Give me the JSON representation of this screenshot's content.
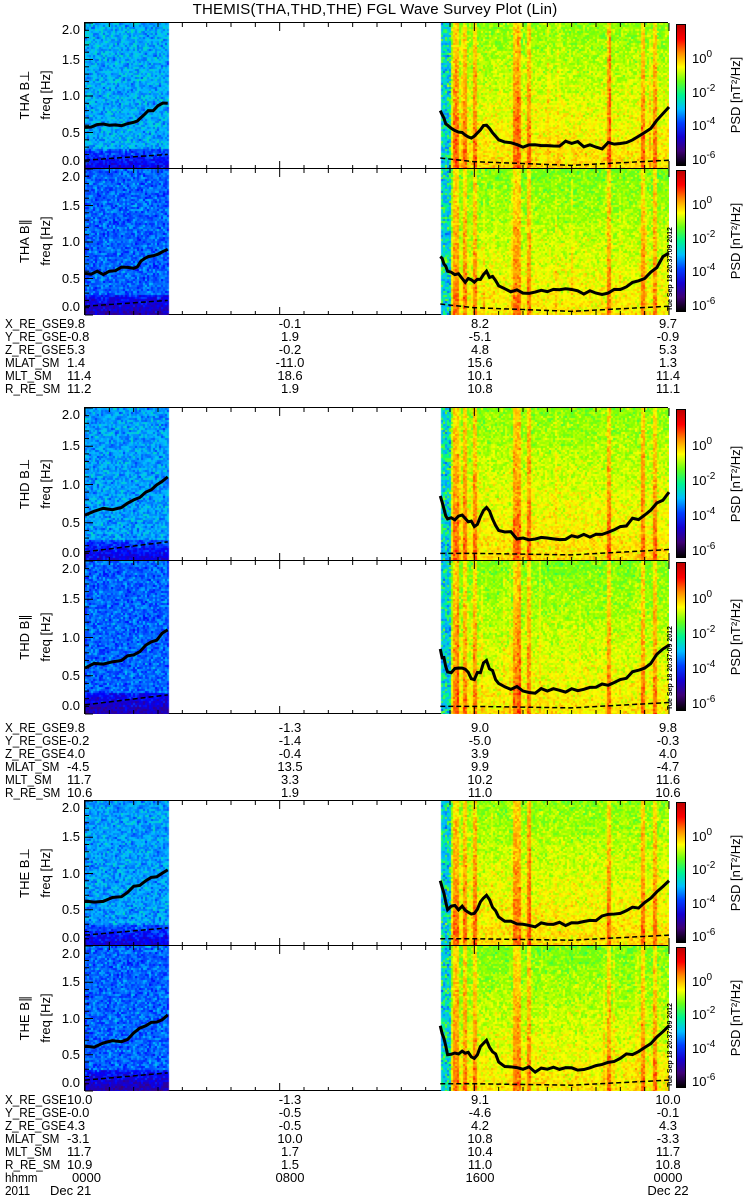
{
  "title": "THEMIS(THA,THD,THE) FGL Wave Survey Plot (Lin)",
  "timestamp": "Tue Sep 18 20:37:09 2012",
  "chart_data": {
    "type": "heatmap",
    "title": "THEMIS(THA,THD,THE) FGL Wave Survey Plot (Lin)",
    "xlabel": "hhmm",
    "x_range_hours": [
      0,
      24
    ],
    "x_tick_labels": [
      "0000",
      "0800",
      "1600",
      "0000"
    ],
    "x_tick_hours": [
      0,
      8,
      16,
      24
    ],
    "year_label": "2011",
    "date_labels": [
      "Dec 21",
      "Dec 22"
    ],
    "ylabel": "freq [Hz]",
    "ylim": [
      0,
      2
    ],
    "y_tick_labels": [
      "0.0",
      "0.5",
      "1.0",
      "1.5",
      "2.0"
    ],
    "colorbar": {
      "label": "PSD [nT²/Hz]",
      "log10_range": [
        -6.5,
        2
      ],
      "ticks": [
        {
          "base": "10",
          "exp": "0",
          "value": 0
        },
        {
          "base": "10",
          "exp": "-2",
          "value": -2
        },
        {
          "base": "10",
          "exp": "-4",
          "value": -4
        },
        {
          "base": "10",
          "exp": "-6",
          "value": -6
        }
      ]
    },
    "data_intervals_hours": [
      [
        0,
        3.45
      ],
      [
        14.6,
        24
      ]
    ],
    "enhanced_power_hours": [
      15.2,
      15.55,
      16.0,
      17.6,
      17.75,
      18.2,
      21.5,
      22.9,
      23.4
    ],
    "panels": [
      {
        "label": "THA B⊥",
        "probe": "THA",
        "base_log_psd_left": -3.2,
        "base_log_psd_right": -1.2,
        "solid_line": [
          [
            [
              0,
              0.57
            ],
            [
              1,
              0.6
            ],
            [
              2,
              0.64
            ],
            [
              2.6,
              0.8
            ],
            [
              3.4,
              0.9
            ]
          ],
          [
            [
              14.6,
              0.8
            ],
            [
              14.9,
              0.6
            ],
            [
              15.5,
              0.5
            ],
            [
              16,
              0.45
            ],
            [
              16.5,
              0.6
            ],
            [
              17,
              0.4
            ],
            [
              18,
              0.3
            ],
            [
              19,
              0.32
            ],
            [
              20,
              0.35
            ],
            [
              21,
              0.3
            ],
            [
              22,
              0.35
            ],
            [
              23,
              0.5
            ],
            [
              24,
              0.85
            ]
          ]
        ],
        "dashed_line": [
          [
            [
              0,
              0.12
            ],
            [
              3.4,
              0.2
            ]
          ],
          [
            [
              14.6,
              0.15
            ],
            [
              16,
              0.1
            ],
            [
              20,
              0.05
            ],
            [
              24,
              0.12
            ]
          ]
        ]
      },
      {
        "label": "THA B∥",
        "probe": "THA",
        "base_log_psd_left": -3.7,
        "base_log_psd_right": -1.3,
        "solid_line": [
          [
            [
              0,
              0.57
            ],
            [
              1,
              0.6
            ],
            [
              2,
              0.64
            ],
            [
              2.6,
              0.8
            ],
            [
              3.4,
              0.9
            ]
          ],
          [
            [
              14.6,
              0.8
            ],
            [
              14.9,
              0.6
            ],
            [
              15.5,
              0.5
            ],
            [
              16,
              0.45
            ],
            [
              16.5,
              0.6
            ],
            [
              17,
              0.4
            ],
            [
              18,
              0.3
            ],
            [
              19,
              0.32
            ],
            [
              20,
              0.35
            ],
            [
              21,
              0.3
            ],
            [
              22,
              0.35
            ],
            [
              23,
              0.5
            ],
            [
              24,
              0.85
            ]
          ]
        ],
        "dashed_line": [
          [
            [
              0,
              0.12
            ],
            [
              3.4,
              0.2
            ]
          ],
          [
            [
              14.6,
              0.15
            ],
            [
              16,
              0.1
            ],
            [
              20,
              0.05
            ],
            [
              24,
              0.12
            ]
          ]
        ]
      },
      {
        "label": "THD B⊥",
        "probe": "THD",
        "base_log_psd_left": -3.3,
        "base_log_psd_right": -1.2,
        "solid_line": [
          [
            [
              0,
              0.6
            ],
            [
              1.5,
              0.7
            ],
            [
              2.5,
              0.9
            ],
            [
              3.4,
              1.1
            ]
          ],
          [
            [
              14.6,
              0.85
            ],
            [
              14.9,
              0.55
            ],
            [
              15.5,
              0.6
            ],
            [
              16,
              0.45
            ],
            [
              16.5,
              0.7
            ],
            [
              17,
              0.4
            ],
            [
              18,
              0.3
            ],
            [
              19,
              0.3
            ],
            [
              20,
              0.33
            ],
            [
              21,
              0.35
            ],
            [
              22,
              0.45
            ],
            [
              23,
              0.6
            ],
            [
              24,
              0.9
            ]
          ]
        ],
        "dashed_line": [
          [
            [
              0,
              0.12
            ],
            [
              3.4,
              0.25
            ]
          ],
          [
            [
              14.6,
              0.1
            ],
            [
              16,
              0.1
            ],
            [
              20,
              0.08
            ],
            [
              24,
              0.15
            ]
          ]
        ]
      },
      {
        "label": "THD B∥",
        "probe": "THD",
        "base_log_psd_left": -3.7,
        "base_log_psd_right": -1.3,
        "solid_line": [
          [
            [
              0,
              0.6
            ],
            [
              1.5,
              0.7
            ],
            [
              2.5,
              0.9
            ],
            [
              3.4,
              1.1
            ]
          ],
          [
            [
              14.6,
              0.85
            ],
            [
              14.9,
              0.55
            ],
            [
              15.5,
              0.6
            ],
            [
              16,
              0.45
            ],
            [
              16.5,
              0.7
            ],
            [
              17,
              0.4
            ],
            [
              18,
              0.3
            ],
            [
              19,
              0.3
            ],
            [
              20,
              0.33
            ],
            [
              21,
              0.35
            ],
            [
              22,
              0.45
            ],
            [
              23,
              0.6
            ],
            [
              24,
              0.9
            ]
          ]
        ],
        "dashed_line": [
          [
            [
              0,
              0.12
            ],
            [
              3.4,
              0.25
            ]
          ],
          [
            [
              14.6,
              0.1
            ],
            [
              16,
              0.1
            ],
            [
              20,
              0.08
            ],
            [
              24,
              0.15
            ]
          ]
        ]
      },
      {
        "label": "THE B⊥",
        "probe": "THE",
        "base_log_psd_left": -3.3,
        "base_log_psd_right": -1.2,
        "solid_line": [
          [
            [
              0,
              0.62
            ],
            [
              1.5,
              0.68
            ],
            [
              2.5,
              0.9
            ],
            [
              3.4,
              1.05
            ]
          ],
          [
            [
              14.6,
              0.9
            ],
            [
              14.9,
              0.5
            ],
            [
              15.5,
              0.55
            ],
            [
              16,
              0.45
            ],
            [
              16.5,
              0.7
            ],
            [
              17,
              0.4
            ],
            [
              18,
              0.3
            ],
            [
              19,
              0.3
            ],
            [
              20,
              0.32
            ],
            [
              21,
              0.35
            ],
            [
              22,
              0.45
            ],
            [
              23,
              0.6
            ],
            [
              24,
              0.9
            ]
          ]
        ],
        "dashed_line": [
          [
            [
              0,
              0.15
            ],
            [
              3.4,
              0.25
            ]
          ],
          [
            [
              14.6,
              0.1
            ],
            [
              16,
              0.1
            ],
            [
              20,
              0.08
            ],
            [
              24,
              0.15
            ]
          ]
        ]
      },
      {
        "label": "THE B∥",
        "probe": "THE",
        "base_log_psd_left": -3.7,
        "base_log_psd_right": -1.3,
        "solid_line": [
          [
            [
              0,
              0.62
            ],
            [
              1.5,
              0.68
            ],
            [
              2.5,
              0.9
            ],
            [
              3.4,
              1.05
            ]
          ],
          [
            [
              14.6,
              0.9
            ],
            [
              14.9,
              0.5
            ],
            [
              15.5,
              0.55
            ],
            [
              16,
              0.45
            ],
            [
              16.5,
              0.7
            ],
            [
              17,
              0.4
            ],
            [
              18,
              0.3
            ],
            [
              19,
              0.3
            ],
            [
              20,
              0.32
            ],
            [
              21,
              0.35
            ],
            [
              22,
              0.45
            ],
            [
              23,
              0.6
            ],
            [
              24,
              0.9
            ]
          ]
        ],
        "dashed_line": [
          [
            [
              0,
              0.15
            ],
            [
              3.4,
              0.25
            ]
          ],
          [
            [
              14.6,
              0.1
            ],
            [
              16,
              0.1
            ],
            [
              20,
              0.08
            ],
            [
              24,
              0.15
            ]
          ]
        ]
      }
    ],
    "orbit_tables": [
      {
        "probe": "THA",
        "rows": [
          {
            "label": "X_RE_GSE",
            "values": [
              "9.8",
              "-0.1",
              "8.2",
              "9.7"
            ]
          },
          {
            "label": "Y_RE_GSE",
            "values": [
              "-0.8",
              "1.9",
              "-5.1",
              "-0.9"
            ]
          },
          {
            "label": "Z_RE_GSE",
            "values": [
              "5.3",
              "-0.2",
              "4.8",
              "5.3"
            ]
          },
          {
            "label": "MLAT_SM",
            "values": [
              "1.4",
              "-11.0",
              "15.6",
              "1.3"
            ]
          },
          {
            "label": "MLT_SM",
            "values": [
              "11.4",
              "18.6",
              "10.1",
              "11.4"
            ]
          },
          {
            "label": "R_RE_SM",
            "values": [
              "11.2",
              "1.9",
              "10.8",
              "11.1"
            ]
          }
        ]
      },
      {
        "probe": "THD",
        "rows": [
          {
            "label": "X_RE_GSE",
            "values": [
              "9.8",
              "-1.3",
              "9.0",
              "9.8"
            ]
          },
          {
            "label": "Y_RE_GSE",
            "values": [
              "-0.2",
              "-1.4",
              "-5.0",
              "-0.3"
            ]
          },
          {
            "label": "Z_RE_GSE",
            "values": [
              "4.0",
              "-0.4",
              "3.9",
              "4.0"
            ]
          },
          {
            "label": "MLAT_SM",
            "values": [
              "-4.5",
              "13.5",
              "9.9",
              "-4.7"
            ]
          },
          {
            "label": "MLT_SM",
            "values": [
              "11.7",
              "3.3",
              "10.2",
              "11.6"
            ]
          },
          {
            "label": "R_RE_SM",
            "values": [
              "10.6",
              "1.9",
              "11.0",
              "10.6"
            ]
          }
        ]
      },
      {
        "probe": "THE",
        "rows": [
          {
            "label": "X_RE_GSE",
            "values": [
              "10.0",
              "-1.3",
              "9.1",
              "10.0"
            ]
          },
          {
            "label": "Y_RE_GSE",
            "values": [
              "-0.0",
              "-0.5",
              "-4.6",
              "-0.1"
            ]
          },
          {
            "label": "Z_RE_GSE",
            "values": [
              "4.3",
              "-0.5",
              "4.2",
              "4.3"
            ]
          },
          {
            "label": "MLAT_SM",
            "values": [
              "-3.1",
              "10.0",
              "10.8",
              "-3.3"
            ]
          },
          {
            "label": "MLT_SM",
            "values": [
              "11.7",
              "1.7",
              "10.4",
              "11.7"
            ]
          },
          {
            "label": "R_RE_SM",
            "values": [
              "10.9",
              "1.5",
              "11.0",
              "10.8"
            ]
          }
        ]
      }
    ]
  }
}
